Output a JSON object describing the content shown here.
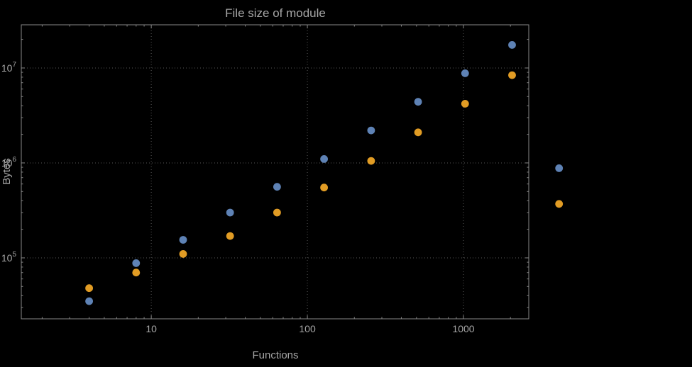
{
  "chart_data": {
    "type": "scatter",
    "title": "File size of module",
    "xlabel": "Functions",
    "ylabel": "Bytes",
    "legend": "none",
    "grid": "dotted-major",
    "x_axis": {
      "scale": "log",
      "range": [
        1.47,
        2620
      ],
      "ticks": [
        {
          "value": 10,
          "label": "10"
        },
        {
          "value": 100,
          "label": "100"
        },
        {
          "value": 1000,
          "label": "1000"
        }
      ]
    },
    "y_axis": {
      "scale": "log",
      "range": [
        22800,
        28500000
      ],
      "ticks": [
        {
          "value": 100000,
          "base": "10",
          "exp": "5"
        },
        {
          "value": 1000000,
          "base": "10",
          "exp": "6"
        },
        {
          "value": 10000000,
          "base": "10",
          "exp": "7"
        }
      ]
    },
    "x": [
      4,
      8,
      16,
      32,
      64,
      128,
      256,
      512,
      1024,
      2048,
      4096
    ],
    "series": [
      {
        "name": "blue",
        "color": "#5e82b5",
        "values": [
          35000,
          88000,
          155000,
          300000,
          560000,
          1100000,
          2200000,
          4400000,
          8800000,
          17500000,
          880000
        ]
      },
      {
        "name": "orange",
        "color": "#e19c24",
        "values": [
          48000,
          70000,
          110000,
          170000,
          300000,
          550000,
          1050000,
          2100000,
          4200000,
          8400000,
          370000
        ]
      }
    ]
  },
  "style": {
    "background_color": "#000000",
    "text_color": "#a6a6a6",
    "frame_color": "#878787",
    "grid_color": "#575757"
  }
}
